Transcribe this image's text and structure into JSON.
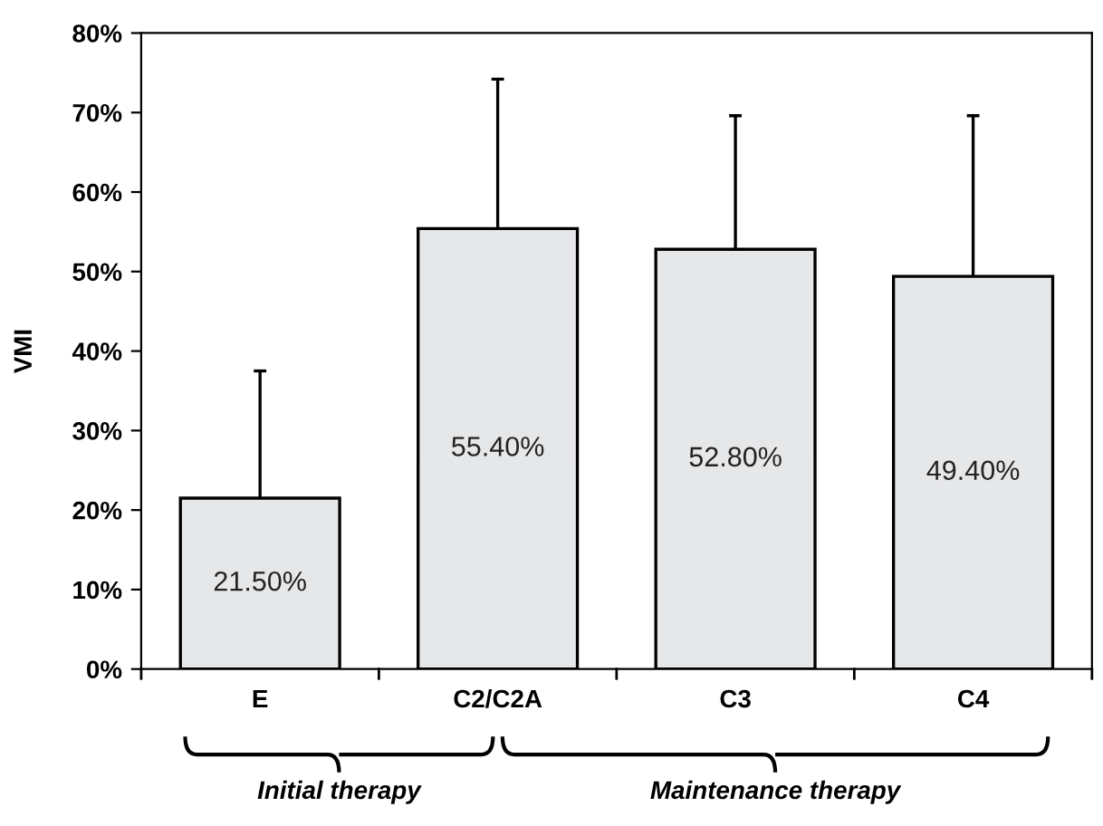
{
  "chart_data": {
    "type": "bar",
    "ylabel": "VMI",
    "categories": [
      "E",
      "C2/C2A",
      "C3",
      "C4"
    ],
    "values": [
      21.5,
      55.4,
      52.8,
      49.4
    ],
    "value_labels": [
      "21.50%",
      "55.40%",
      "52.80%",
      "49.40%"
    ],
    "errors": [
      [
        21.5,
        37.5
      ],
      [
        55.4,
        74.2
      ],
      [
        52.8,
        69.6
      ],
      [
        49.4,
        69.6
      ]
    ],
    "color": "#e6e7e9",
    "ylim": [
      0,
      80
    ],
    "yticks": [
      {
        "value": 0,
        "label": "0%"
      },
      {
        "value": 10,
        "label": "10%"
      },
      {
        "value": 20,
        "label": "20%"
      },
      {
        "value": 30,
        "label": "30%"
      },
      {
        "value": 40,
        "label": "40%"
      },
      {
        "value": 50,
        "label": "50%"
      },
      {
        "value": 60,
        "label": "60%"
      },
      {
        "value": 70,
        "label": "70%"
      },
      {
        "value": 80,
        "label": "80%"
      }
    ],
    "grid": false,
    "annotations": [
      "Initial therapy",
      "Maintenance therapy"
    ]
  }
}
